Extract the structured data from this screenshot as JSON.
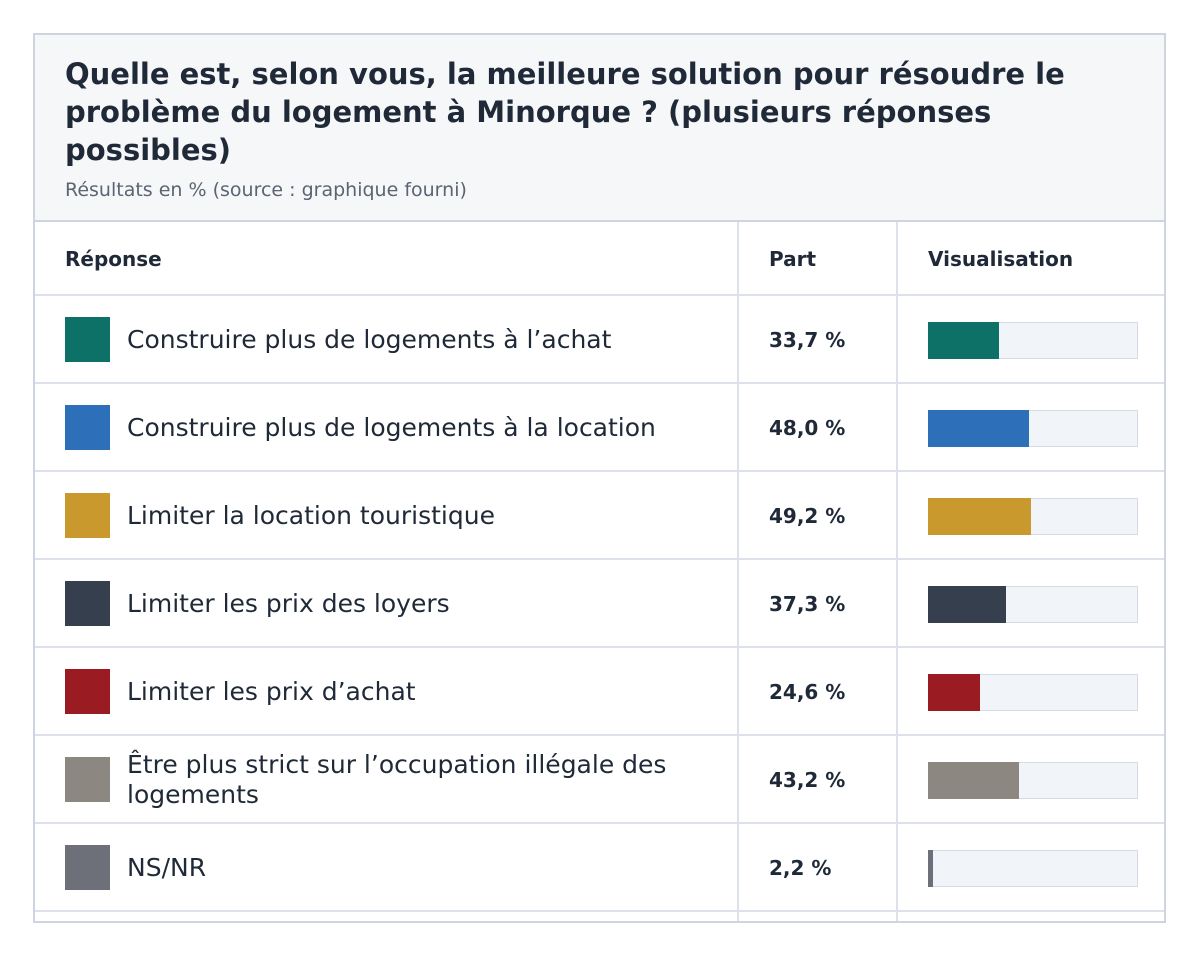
{
  "header": {
    "title": "Quelle est, selon vous, la meilleure solution pour résoudre le problème du logement à Minorque ? (plusieurs réponses possibles)",
    "subtitle": "Résultats en % (source : graphique fourni)"
  },
  "columns": {
    "response": "Réponse",
    "share": "Part",
    "visualisation": "Visualisation"
  },
  "chart_data": {
    "type": "table",
    "title": "Quelle est, selon vous, la meilleure solution pour résoudre le problème du logement à Minorque ? (plusieurs réponses possibles)",
    "subtitle": "Résultats en % (source : graphique fourni)",
    "xlabel": "",
    "ylabel": "",
    "ylim": [
      0,
      100
    ],
    "rows": [
      {
        "label": "Construire plus de logements à l’achat",
        "value": 33.7,
        "display": "33,7 %",
        "color": "#0e7168"
      },
      {
        "label": "Construire plus de logements à la location",
        "value": 48.0,
        "display": "48,0 %",
        "color": "#2e6fba"
      },
      {
        "label": "Limiter la location touristique",
        "value": 49.2,
        "display": "49,2 %",
        "color": "#c9992d"
      },
      {
        "label": "Limiter les prix des loyers",
        "value": 37.3,
        "display": "37,3 %",
        "color": "#363f4d"
      },
      {
        "label": "Limiter les prix d’achat",
        "value": 24.6,
        "display": "24,6 %",
        "color": "#9b1b22"
      },
      {
        "label": "Être plus strict sur l’occupation illégale des logements",
        "value": 43.2,
        "display": "43,2 %",
        "color": "#8c8780"
      },
      {
        "label": "NS/NR",
        "value": 2.2,
        "display": "2,2 %",
        "color": "#6d7079"
      }
    ]
  }
}
